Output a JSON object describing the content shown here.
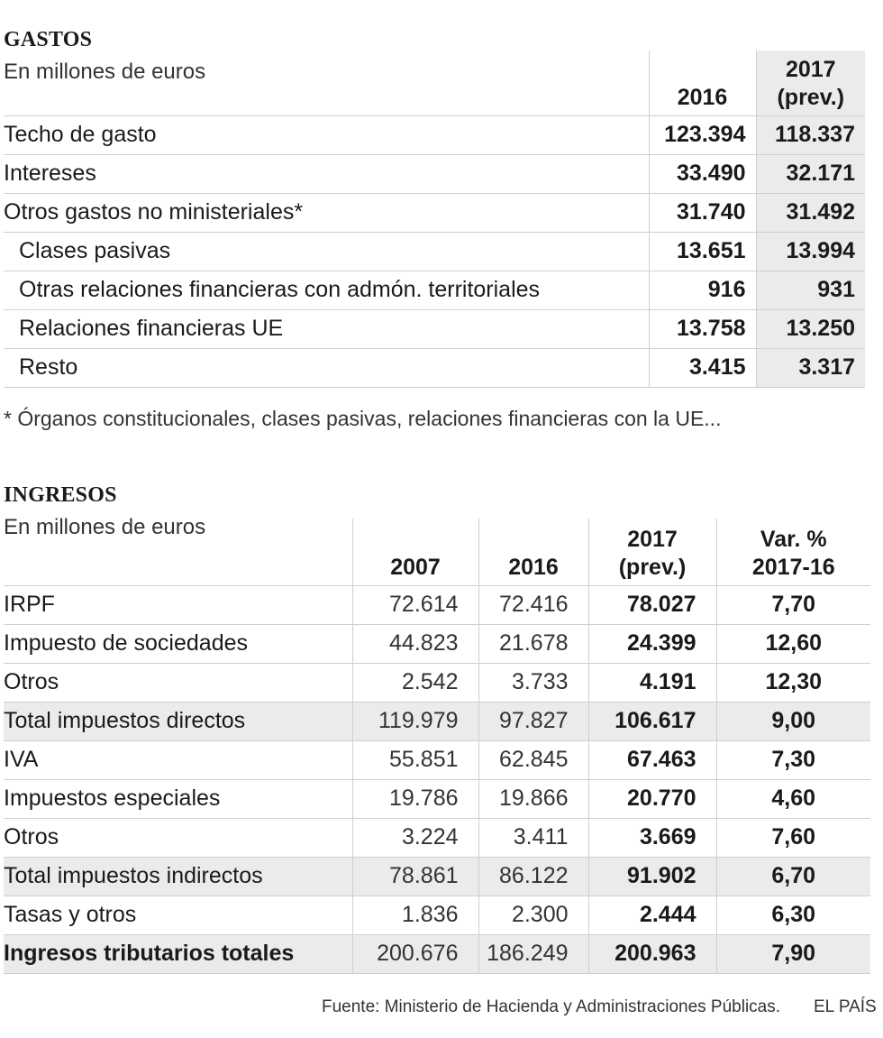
{
  "gastos": {
    "title": "GASTOS",
    "unit": "En millones de euros",
    "columns": [
      "2016",
      "2017\n(prev.)"
    ],
    "rows": [
      {
        "label": "Techo de gasto",
        "v2016": "123.394",
        "v2017": "118.337",
        "indent": false
      },
      {
        "label": "Intereses",
        "v2016": "33.490",
        "v2017": "32.171",
        "indent": false
      },
      {
        "label": "Otros gastos no ministeriales*",
        "v2016": "31.740",
        "v2017": "31.492",
        "indent": false
      },
      {
        "label": "Clases pasivas",
        "v2016": "13.651",
        "v2017": "13.994",
        "indent": true
      },
      {
        "label": "Otras relaciones financieras con admón. territoriales",
        "v2016": "916",
        "v2017": "931",
        "indent": true
      },
      {
        "label": "Relaciones financieras UE",
        "v2016": "13.758",
        "v2017": "13.250",
        "indent": true
      },
      {
        "label": "Resto",
        "v2016": "3.415",
        "v2017": "3.317",
        "indent": true
      }
    ],
    "note": "* Órganos constitucionales, clases pasivas, relaciones financieras con la UE..."
  },
  "ingresos": {
    "title": "INGRESOS",
    "unit": "En millones de euros",
    "columns": [
      "2007",
      "2016",
      "2017\n(prev.)",
      "Var. %\n2017-16"
    ],
    "rows": [
      {
        "label": "IRPF",
        "v2007": "72.614",
        "v2016": "72.416",
        "v2017": "78.027",
        "var": "7,70",
        "shaded": false,
        "total": false
      },
      {
        "label": "Impuesto de sociedades",
        "v2007": "44.823",
        "v2016": "21.678",
        "v2017": "24.399",
        "var": "12,60",
        "shaded": false,
        "total": false
      },
      {
        "label": "Otros",
        "v2007": "2.542",
        "v2016": "3.733",
        "v2017": "4.191",
        "var": "12,30",
        "shaded": false,
        "total": false
      },
      {
        "label": "Total impuestos directos",
        "v2007": "119.979",
        "v2016": "97.827",
        "v2017": "106.617",
        "var": "9,00",
        "shaded": true,
        "total": false
      },
      {
        "label": "IVA",
        "v2007": "55.851",
        "v2016": "62.845",
        "v2017": "67.463",
        "var": "7,30",
        "shaded": false,
        "total": false
      },
      {
        "label": "Impuestos especiales",
        "v2007": "19.786",
        "v2016": "19.866",
        "v2017": "20.770",
        "var": "4,60",
        "shaded": false,
        "total": false
      },
      {
        "label": "Otros",
        "v2007": "3.224",
        "v2016": "3.411",
        "v2017": "3.669",
        "var": "7,60",
        "shaded": false,
        "total": false
      },
      {
        "label": "Total impuestos indirectos",
        "v2007": "78.861",
        "v2016": "86.122",
        "v2017": "91.902",
        "var": "6,70",
        "shaded": true,
        "total": false
      },
      {
        "label": "Tasas y otros",
        "v2007": "1.836",
        "v2016": "2.300",
        "v2017": "2.444",
        "var": "6,30",
        "shaded": false,
        "total": false
      },
      {
        "label": "Ingresos tributarios totales",
        "v2007": "200.676",
        "v2016": "186.249",
        "v2017": "200.963",
        "var": "7,90",
        "shaded": true,
        "total": true
      }
    ]
  },
  "footer": {
    "source": "Fuente: Ministerio de Hacienda y Administraciones Públicas.",
    "brand": "EL PAÍS"
  },
  "colors": {
    "shade": "#ebebeb",
    "rule": "#cfcfcf",
    "text": "#1a1a1a"
  },
  "chart_data": [
    {
      "type": "table",
      "title": "GASTOS",
      "subtitle": "En millones de euros",
      "columns": [
        "2016",
        "2017 (prev.)"
      ],
      "rows": [
        [
          "Techo de gasto",
          123394,
          118337
        ],
        [
          "Intereses",
          33490,
          32171
        ],
        [
          "Otros gastos no ministeriales*",
          31740,
          31492
        ],
        [
          "Clases pasivas",
          13651,
          13994
        ],
        [
          "Otras relaciones financieras con admón. territoriales",
          916,
          931
        ],
        [
          "Relaciones financieras UE",
          13758,
          13250
        ],
        [
          "Resto",
          3415,
          3317
        ]
      ]
    },
    {
      "type": "table",
      "title": "INGRESOS",
      "subtitle": "En millones de euros",
      "columns": [
        "2007",
        "2016",
        "2017 (prev.)",
        "Var. % 2017-16"
      ],
      "rows": [
        [
          "IRPF",
          72614,
          72416,
          78027,
          7.7
        ],
        [
          "Impuesto de sociedades",
          44823,
          21678,
          24399,
          12.6
        ],
        [
          "Otros",
          2542,
          3733,
          4191,
          12.3
        ],
        [
          "Total impuestos directos",
          119979,
          97827,
          106617,
          9.0
        ],
        [
          "IVA",
          55851,
          62845,
          67463,
          7.3
        ],
        [
          "Impuestos especiales",
          19786,
          19866,
          20770,
          4.6
        ],
        [
          "Otros",
          3224,
          3411,
          3669,
          7.6
        ],
        [
          "Total impuestos indirectos",
          78861,
          86122,
          91902,
          6.7
        ],
        [
          "Tasas y otros",
          1836,
          2300,
          2444,
          6.3
        ],
        [
          "Ingresos tributarios totales",
          200676,
          186249,
          200963,
          7.9
        ]
      ]
    }
  ]
}
